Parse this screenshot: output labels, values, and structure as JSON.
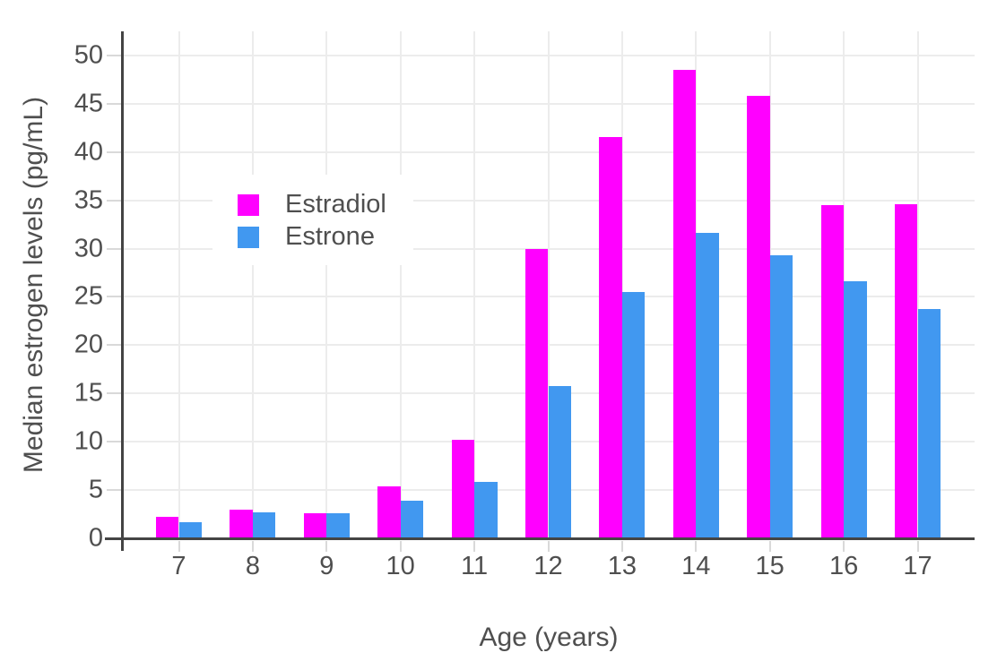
{
  "figure": {
    "background": "#ffffff"
  },
  "style": {
    "axis_color": "#444444",
    "grid_color": "#ececec",
    "tick_color": "#d9d9d9",
    "text_color": "#4f4f4f"
  },
  "chart_data": {
    "type": "bar",
    "bar_mode": "grouped",
    "title": "",
    "xlabel": "Age (years)",
    "ylabel": "Median estrogen levels (pg/mL)",
    "categories": [
      "7",
      "8",
      "9",
      "10",
      "11",
      "12",
      "13",
      "14",
      "15",
      "16",
      "17"
    ],
    "series": [
      {
        "name": "Estradiol",
        "color": "#ff00ff",
        "values": [
          2.2,
          3.0,
          2.6,
          5.4,
          10.2,
          30.0,
          41.6,
          48.5,
          45.8,
          34.5,
          34.6
        ]
      },
      {
        "name": "Estrone",
        "color": "#4198f0",
        "values": [
          1.7,
          2.7,
          2.6,
          3.9,
          5.8,
          15.8,
          25.5,
          31.6,
          29.3,
          26.6,
          23.7
        ]
      }
    ],
    "ylim": [
      0,
      52.5
    ],
    "yticks": [
      0,
      5,
      10,
      15,
      20,
      25,
      30,
      35,
      40,
      45,
      50
    ],
    "grid": true,
    "legend_position": "inside-top-left"
  }
}
